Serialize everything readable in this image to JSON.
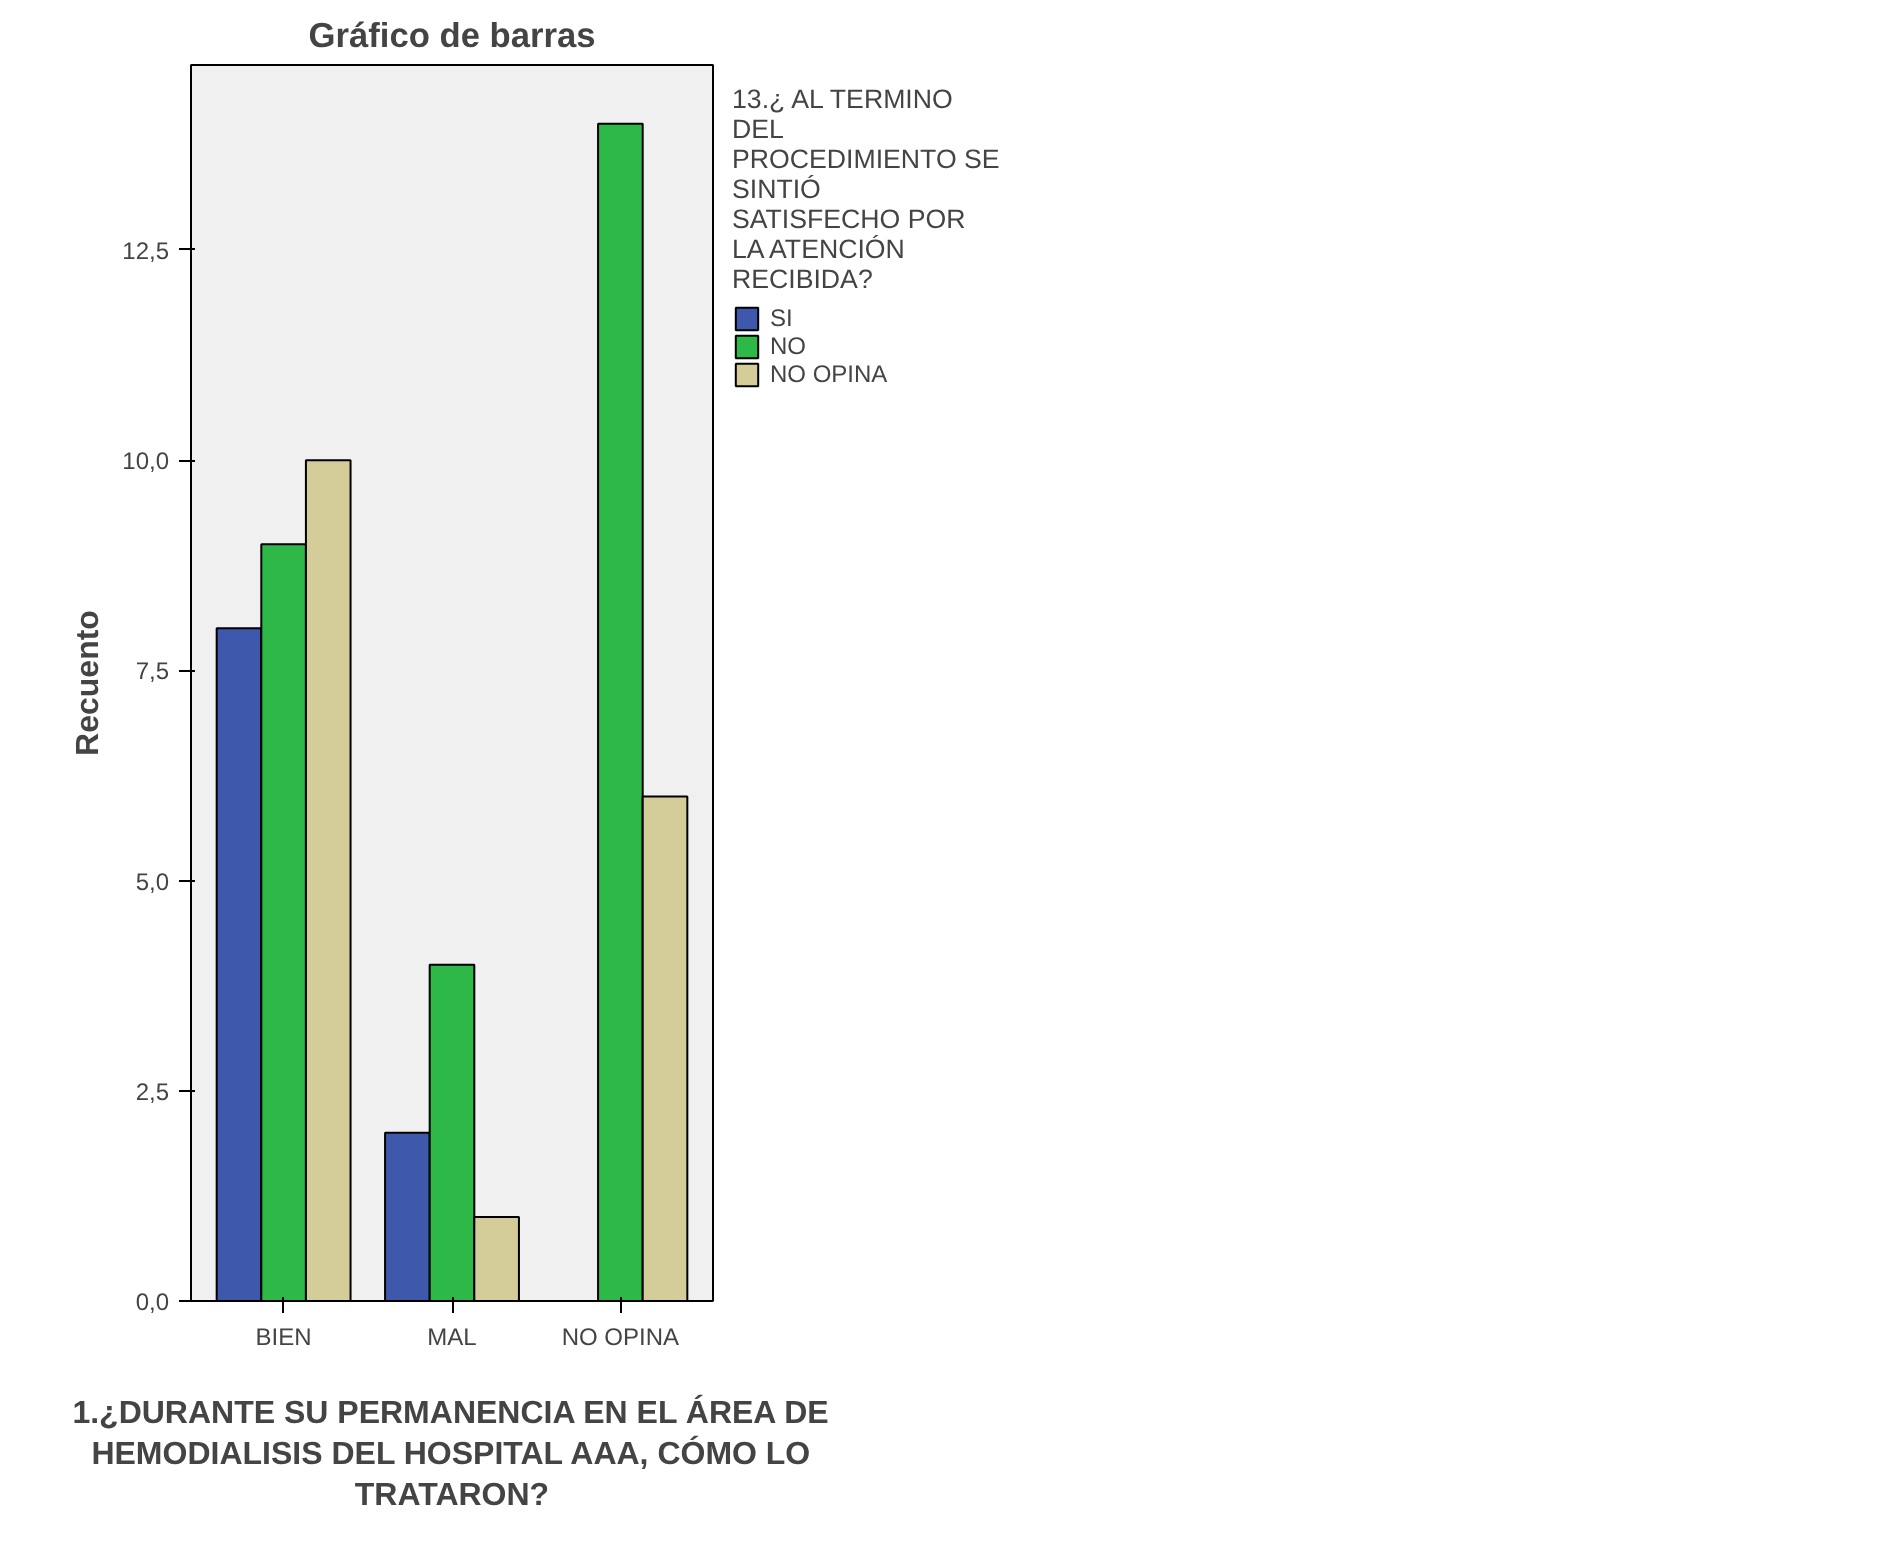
{
  "chart_data": {
    "type": "bar",
    "title": "Gráfico de barras",
    "xlabel": "1.¿DURANTE SU PERMANENCIA EN EL ÁREA DE HEMODIALISIS DEL HOSPITAL AAA, CÓMO LO TRATARON?",
    "ylabel": "Recuento",
    "legend_title": "13.¿ AL TERMINO DEL PROCEDIMIENTO SE SINTIÓ SATISFECHO POR LA ATENCIÓN RECIBIDA?",
    "categories": [
      "BIEN",
      "MAL",
      "NO OPINA"
    ],
    "series": [
      {
        "name": "SI",
        "color": "#3e58ac",
        "values": [
          8,
          2,
          null
        ]
      },
      {
        "name": "NO",
        "color": "#2eb848",
        "values": [
          9,
          4,
          14
        ]
      },
      {
        "name": "NO OPINA",
        "color": "#d4cc99",
        "values": [
          10,
          1,
          6
        ]
      }
    ],
    "ylim": [
      0,
      14.7
    ],
    "yticks": [
      {
        "value": 0,
        "label": "0,0"
      },
      {
        "value": 2.5,
        "label": "2,5"
      },
      {
        "value": 5,
        "label": "5,0"
      },
      {
        "value": 7.5,
        "label": "7,5"
      },
      {
        "value": 10,
        "label": "10,0"
      },
      {
        "value": 12.5,
        "label": "12,5"
      }
    ],
    "grid": false,
    "legend": "right"
  }
}
